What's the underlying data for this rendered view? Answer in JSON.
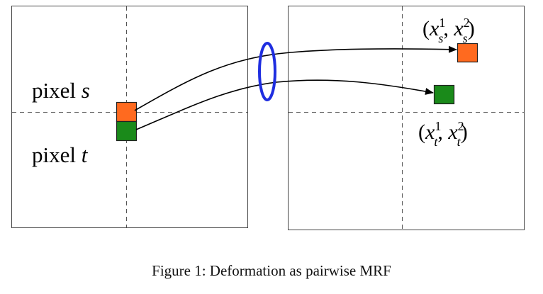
{
  "diagram": {
    "left_panel": {
      "label_s_prefix": "pixel ",
      "label_s_var": "s",
      "label_t_prefix": "pixel ",
      "label_t_var": "t"
    },
    "right_panel": {
      "coord_s": {
        "open": "(",
        "x1": "x",
        "x1_sup": "1",
        "x1_sub": "s",
        "sep": ", ",
        "x2": "x",
        "x2_sup": "2",
        "x2_sub": "s",
        "close": ")"
      },
      "coord_t": {
        "open": "(",
        "x1": "x",
        "x1_sup": "1",
        "x1_sub": "t",
        "sep": ", ",
        "x2": "x",
        "x2_sup": "2",
        "x2_sub": "t",
        "close": ")"
      }
    },
    "colors": {
      "pixel_s": "#ff6a1f",
      "pixel_t": "#1a8a1a",
      "ellipse": "#1f2ee0",
      "box": "#444444",
      "dashed": "#555555"
    }
  },
  "caption": "Figure 1: Deformation as pairwise MRF"
}
